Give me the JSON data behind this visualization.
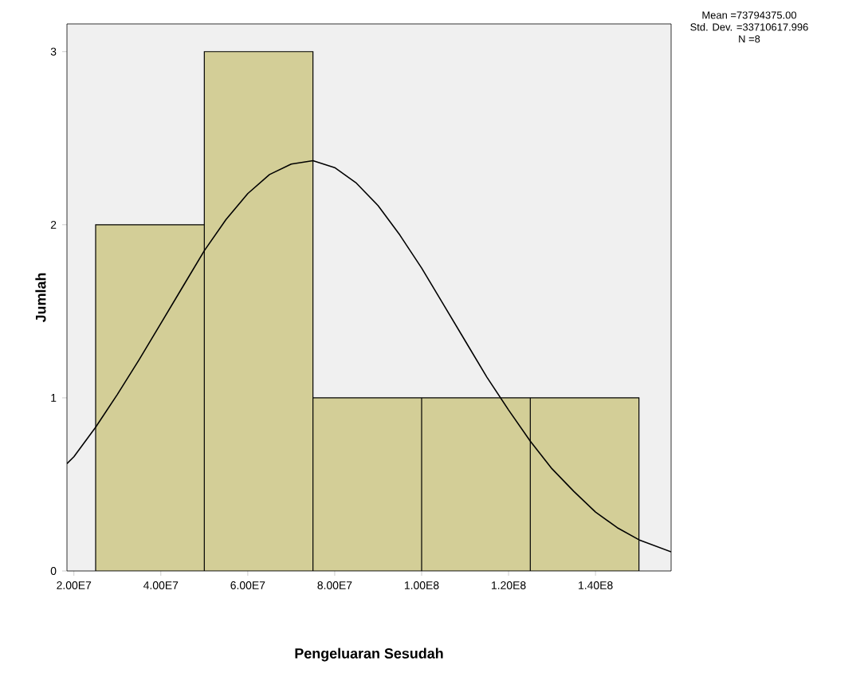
{
  "chart_data": {
    "type": "histogram",
    "xlabel": "Pengeluaran Sesudah",
    "ylabel": "Jumlah",
    "bins": [
      25000000,
      50000000,
      75000000,
      100000000,
      125000000,
      150000000
    ],
    "values": [
      2,
      3,
      1,
      1,
      1
    ],
    "color": "#d3ce97",
    "series": [
      {
        "type": "line",
        "color": "#000000",
        "x": [
          18400000,
          20000000,
          25000000,
          30000000,
          35000000,
          40000000,
          45000000,
          50000000,
          55000000,
          60000000,
          65000000,
          70000000,
          75000000,
          80000000,
          85000000,
          90000000,
          95000000,
          100000000,
          105000000,
          110000000,
          115000000,
          120000000,
          125000000,
          130000000,
          135000000,
          140000000,
          145000000,
          150000000,
          157400000
        ],
        "values": [
          0.62,
          0.66,
          0.83,
          1.02,
          1.22,
          1.43,
          1.64,
          1.85,
          2.03,
          2.18,
          2.29,
          2.35,
          2.37,
          2.33,
          2.24,
          2.11,
          1.94,
          1.75,
          1.54,
          1.33,
          1.12,
          0.93,
          0.75,
          0.59,
          0.46,
          0.34,
          0.25,
          0.18,
          0.11
        ]
      }
    ],
    "xlim": [
      18400000,
      157400000
    ],
    "ylim": [
      0,
      3.16
    ],
    "xticks": [
      {
        "value": 20000000,
        "label": "2.00E7"
      },
      {
        "value": 40000000,
        "label": "4.00E7"
      },
      {
        "value": 60000000,
        "label": "6.00E7"
      },
      {
        "value": 80000000,
        "label": "8.00E7"
      },
      {
        "value": 100000000,
        "label": "1.00E8"
      },
      {
        "value": 120000000,
        "label": "1.20E8"
      },
      {
        "value": 140000000,
        "label": "1.40E8"
      }
    ],
    "yticks": [
      0,
      1,
      2,
      3
    ],
    "annotations": [
      "Mean =73794375.00",
      "Std. Dev. =33710617.996",
      "N =8"
    ]
  }
}
